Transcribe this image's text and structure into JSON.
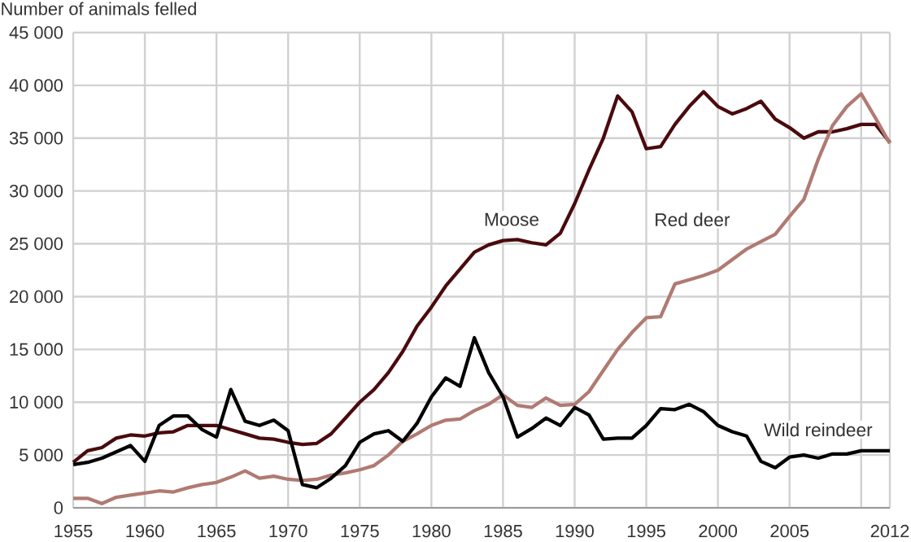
{
  "chart_data": {
    "type": "line",
    "ylabel": "Number of animals felled",
    "x": [
      1955,
      1956,
      1957,
      1958,
      1959,
      1960,
      1961,
      1962,
      1963,
      1964,
      1965,
      1966,
      1967,
      1968,
      1969,
      1970,
      1971,
      1972,
      1973,
      1974,
      1975,
      1976,
      1977,
      1978,
      1979,
      1980,
      1981,
      1982,
      1983,
      1984,
      1985,
      1986,
      1987,
      1988,
      1989,
      1990,
      1991,
      1992,
      1993,
      1994,
      1995,
      1996,
      1997,
      1998,
      1999,
      2000,
      2001,
      2002,
      2003,
      2004,
      2005,
      2006,
      2007,
      2008,
      2009,
      2010,
      2011,
      2012
    ],
    "series": [
      {
        "name": "Moose",
        "color": "#4a0a0e",
        "values": [
          4300,
          5400,
          5700,
          6600,
          6900,
          6800,
          7100,
          7200,
          7800,
          7800,
          7800,
          7400,
          7000,
          6600,
          6500,
          6200,
          6000,
          6100,
          7000,
          8500,
          10000,
          11200,
          12800,
          14800,
          17200,
          19000,
          21000,
          22600,
          24200,
          24900,
          25300,
          25400,
          25100,
          24900,
          26000,
          28800,
          32000,
          35000,
          39000,
          37500,
          34000,
          34200,
          36300,
          38000,
          39400,
          38000,
          37300,
          37800,
          38500,
          36800,
          36000,
          35000,
          35600,
          35600,
          35900,
          36300,
          36300,
          34600
        ]
      },
      {
        "name": "Red deer",
        "color": "#b07a72",
        "values": [
          900,
          900,
          400,
          1000,
          1200,
          1400,
          1600,
          1500,
          1900,
          2200,
          2400,
          2900,
          3500,
          2800,
          3000,
          2700,
          2600,
          2700,
          3100,
          3300,
          3600,
          4000,
          5000,
          6300,
          7000,
          7800,
          8300,
          8400,
          9200,
          9800,
          10700,
          9700,
          9500,
          10400,
          9700,
          9800,
          11000,
          13000,
          15000,
          16600,
          18000,
          18100,
          21200,
          21600,
          22000,
          22500,
          23500,
          24500,
          25200,
          25900,
          27600,
          29200,
          33000,
          36200,
          38000,
          39200,
          36900,
          34500
        ]
      },
      {
        "name": "Wild reindeer",
        "color": "#000000",
        "values": [
          4100,
          4300,
          4700,
          5300,
          5900,
          4400,
          7800,
          8700,
          8700,
          7400,
          6700,
          11200,
          8200,
          7800,
          8300,
          7300,
          2200,
          1900,
          2800,
          4000,
          6200,
          7000,
          7300,
          6300,
          8000,
          10500,
          12300,
          11500,
          16100,
          12800,
          10500,
          6700,
          7500,
          8500,
          7800,
          9500,
          8800,
          6500,
          6600,
          6600,
          7800,
          9400,
          9300,
          9800,
          9100,
          7800,
          7200,
          6800,
          4400,
          3800,
          4800,
          5000,
          4700,
          5100,
          5100,
          5400,
          5400,
          5400
        ]
      }
    ],
    "xlim": [
      1955,
      2012
    ],
    "xticks": [
      1955,
      1960,
      1965,
      1970,
      1975,
      1980,
      1985,
      1990,
      1995,
      2000,
      2005,
      {
        "value": 2010,
        "label": null
      },
      2012
    ],
    "ylim": [
      0,
      45000
    ],
    "yticks": [
      {
        "value": 0,
        "label": "0"
      },
      {
        "value": 5000,
        "label": "5 000"
      },
      {
        "value": 10000,
        "label": "10 000"
      },
      {
        "value": 15000,
        "label": "15 000"
      },
      {
        "value": 20000,
        "label": "20 000"
      },
      {
        "value": 25000,
        "label": "25 000"
      },
      {
        "value": 30000,
        "label": "30 000"
      },
      {
        "value": 35000,
        "label": "35 000"
      },
      {
        "value": 40000,
        "label": "40 000"
      },
      {
        "value": 45000,
        "label": "45 000"
      }
    ],
    "grid": true,
    "marker": "none",
    "line_style": "solid"
  }
}
